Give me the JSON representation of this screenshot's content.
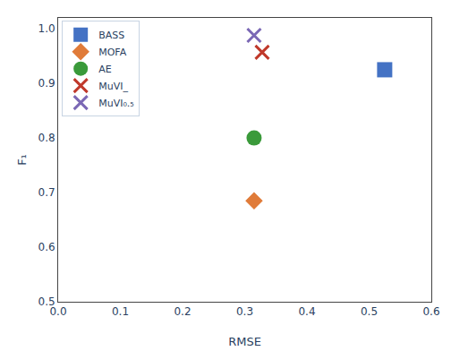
{
  "chart_data": {
    "type": "scatter",
    "xlabel": "RMSE",
    "ylabel": "F₁",
    "series": [
      {
        "name": "BASS",
        "color": "#4472C4",
        "marker": "square",
        "x": [
          0.525
        ],
        "values": [
          0.925
        ]
      },
      {
        "name": "MOFA",
        "color": "#E07B39",
        "marker": "diamond",
        "x": [
          0.315
        ],
        "values": [
          0.685
        ]
      },
      {
        "name": "AE",
        "color": "#3A9A3A",
        "marker": "circle",
        "x": [
          0.315
        ],
        "values": [
          0.8
        ]
      },
      {
        "name": "MuVI_",
        "color": "#C0392B",
        "marker": "x",
        "x": [
          0.328
        ],
        "values": [
          0.957
        ]
      },
      {
        "name": "MuVI₀.₅",
        "color": "#7B68B5",
        "marker": "x",
        "x": [
          0.315
        ],
        "values": [
          0.988
        ]
      }
    ],
    "xlim": [
      0.0,
      0.6
    ],
    "ylim": [
      0.5,
      1.02
    ],
    "xticks": [
      {
        "value": 0,
        "label": "0.0"
      },
      0.1,
      0.2,
      0.3,
      0.4,
      0.5,
      0.6
    ],
    "yticks": [
      0.5,
      0.6,
      0.7,
      0.8,
      0.9,
      {
        "value": 1,
        "label": "1.0"
      }
    ],
    "legend": "upper left",
    "grid": false
  }
}
